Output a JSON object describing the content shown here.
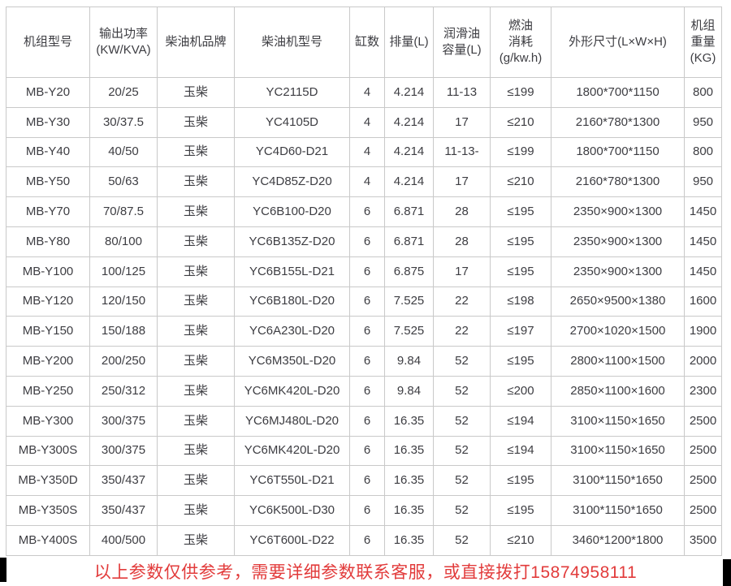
{
  "colors": {
    "accent_red": "#e23b3b",
    "table_border": "#c9c9c9",
    "text": "#3d3d42",
    "edge_black": "#000000"
  },
  "table": {
    "headers": [
      "机组型号",
      "输出功率\n(KW/KVA)",
      "柴油机品牌",
      "柴油机型号",
      "缸数",
      "排量(L)",
      "润滑油\n容量(L)",
      "燃油\n消耗\n(g/kw.h)",
      "外形尺寸(L×W×H)",
      "机组\n重量\n(KG)"
    ],
    "rows": [
      [
        "MB-Y20",
        "20/25",
        "玉柴",
        "YC2115D",
        "4",
        "4.214",
        "11-13",
        "≤199",
        "1800*700*1150",
        "800"
      ],
      [
        "MB-Y30",
        "30/37.5",
        "玉柴",
        "YC4105D",
        "4",
        "4.214",
        "17",
        "≤210",
        "2160*780*1300",
        "950"
      ],
      [
        "MB-Y40",
        "40/50",
        "玉柴",
        "YC4D60-D21",
        "4",
        "4.214",
        "11-13-",
        "≤199",
        "1800*700*1150",
        "800"
      ],
      [
        "MB-Y50",
        "50/63",
        "玉柴",
        "YC4D85Z-D20",
        "4",
        "4.214",
        "17",
        "≤210",
        "2160*780*1300",
        "950"
      ],
      [
        "MB-Y70",
        "70/87.5",
        "玉柴",
        "YC6B100-D20",
        "6",
        "6.871",
        "28",
        "≤195",
        "2350×900×1300",
        "1450"
      ],
      [
        "MB-Y80",
        "80/100",
        "玉柴",
        "YC6B135Z-D20",
        "6",
        "6.871",
        "28",
        "≤195",
        "2350×900×1300",
        "1450"
      ],
      [
        "MB-Y100",
        "100/125",
        "玉柴",
        "YC6B155L-D21",
        "6",
        "6.875",
        "17",
        "≤195",
        "2350×900×1300",
        "1450"
      ],
      [
        "MB-Y120",
        "120/150",
        "玉柴",
        "YC6B180L-D20",
        "6",
        "7.525",
        "22",
        "≤198",
        "2650×9500×1380",
        "1600"
      ],
      [
        "MB-Y150",
        "150/188",
        "玉柴",
        "YC6A230L-D20",
        "6",
        "7.525",
        "22",
        "≤197",
        "2700×1020×1500",
        "1900"
      ],
      [
        "MB-Y200",
        "200/250",
        "玉柴",
        "YC6M350L-D20",
        "6",
        "9.84",
        "52",
        "≤195",
        "2800×1100×1500",
        "2000"
      ],
      [
        "MB-Y250",
        "250/312",
        "玉柴",
        "YC6MK420L-D20",
        "6",
        "9.84",
        "52",
        "≤200",
        "2850×1100×1600",
        "2300"
      ],
      [
        "MB-Y300",
        "300/375",
        "玉柴",
        "YC6MJ480L-D20",
        "6",
        "16.35",
        "52",
        "≤194",
        "3100×1150×1650",
        "2500"
      ],
      [
        "MB-Y300S",
        "300/375",
        "玉柴",
        "YC6MK420L-D20",
        "6",
        "16.35",
        "52",
        "≤194",
        "3100×1150×1650",
        "2500"
      ],
      [
        "MB-Y350D",
        "350/437",
        "玉柴",
        "YC6T550L-D21",
        "6",
        "16.35",
        "52",
        "≤195",
        "3100*1150*1650",
        "2500"
      ],
      [
        "MB-Y350S",
        "350/437",
        "玉柴",
        "YC6K500L-D30",
        "6",
        "16.35",
        "52",
        "≤195",
        "3100*1150*1650",
        "2500"
      ],
      [
        "MB-Y400S",
        "400/500",
        "玉柴",
        "YC6T600L-D22",
        "6",
        "16.35",
        "52",
        "≤210",
        "3460*1200*1800",
        "3500"
      ]
    ]
  },
  "footer": {
    "notice": "以上参数仅供参考，需要详细参数联系客服，或直接拨打15874958111"
  }
}
